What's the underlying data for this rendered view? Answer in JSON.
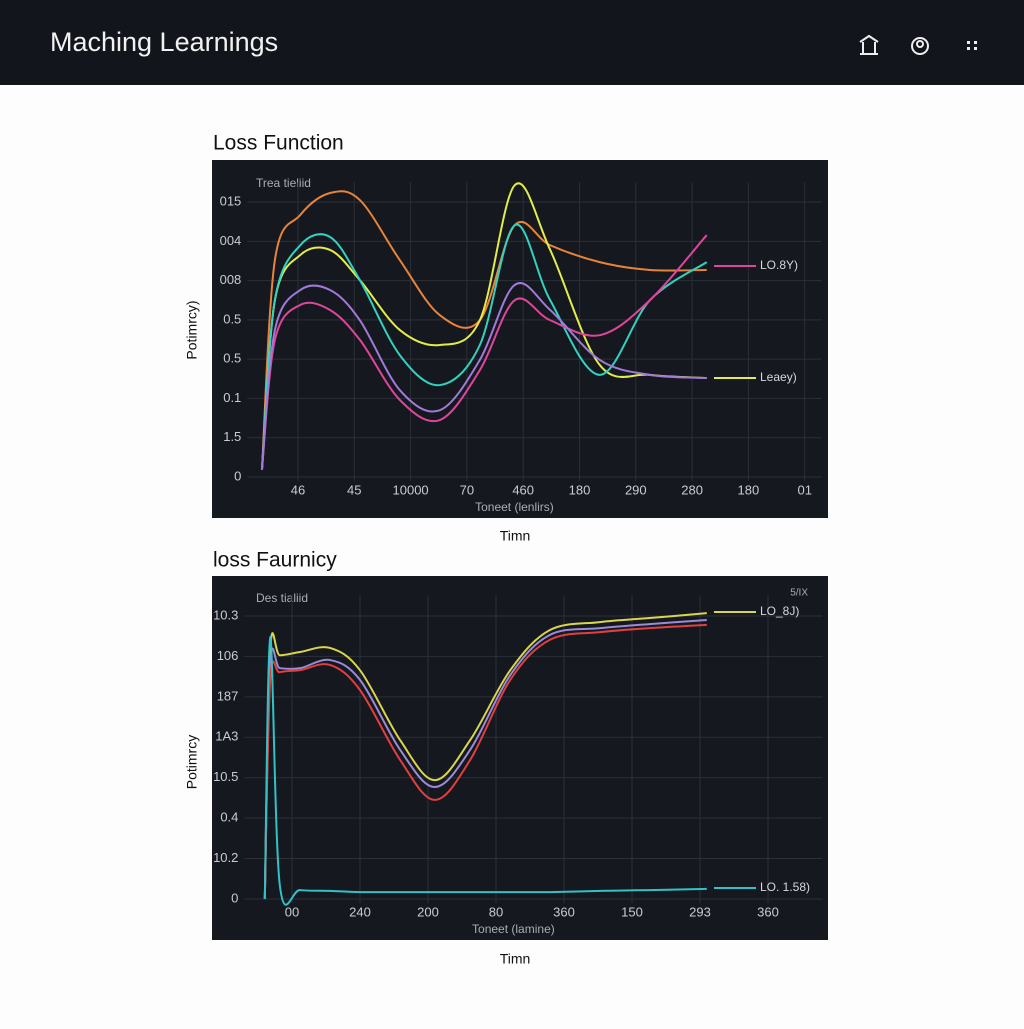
{
  "header": {
    "title": "Maching Learnings"
  },
  "chart_data": [
    {
      "type": "line",
      "title": "Loss Function",
      "subtitle": "Trea tieliid",
      "x_label": "Toneet (lenlirs)",
      "y_label": "Potimrcy)",
      "caption": "Timn",
      "grid": true,
      "xlim": [
        -0.9,
        9.3
      ],
      "ylim": [
        -0.1,
        7.5
      ],
      "xticks": [
        {
          "value": 0,
          "label": "46"
        },
        {
          "value": 1,
          "label": "45"
        },
        {
          "value": 2,
          "label": "10000"
        },
        {
          "value": 3,
          "label": "70"
        },
        {
          "value": 4,
          "label": "460"
        },
        {
          "value": 5,
          "label": "180"
        },
        {
          "value": 6,
          "label": "290"
        },
        {
          "value": 7,
          "label": "280"
        },
        {
          "value": 8,
          "label": "180"
        },
        {
          "value": 9,
          "label": "01"
        }
      ],
      "yticks": [
        {
          "value": 7,
          "label": "015"
        },
        {
          "value": 6,
          "label": "004"
        },
        {
          "value": 5,
          "label": "008"
        },
        {
          "value": 4,
          "label": "0.5"
        },
        {
          "value": 3,
          "label": "0.5"
        },
        {
          "value": 2,
          "label": "0.1"
        },
        {
          "value": 1,
          "label": "1.5"
        },
        0
      ],
      "x": [
        -0.64,
        -0.41,
        0.04,
        0.57,
        1.1,
        1.81,
        2.52,
        3.23,
        3.85,
        4.48,
        5.36,
        6.25,
        7.26
      ],
      "series": [
        {
          "color": "#e8843a",
          "values": [
            0.18,
            5.52,
            6.67,
            7.23,
            7.05,
            5.52,
            4.12,
            3.99,
            6.41,
            5.9,
            5.47,
            5.27,
            5.27
          ]
        },
        {
          "name": "Leaey)",
          "color": "#e4ec4a",
          "values": [
            0.18,
            4.5,
            5.65,
            5.78,
            5.01,
            3.74,
            3.36,
            3.99,
            7.43,
            5.78,
            2.85,
            2.6,
            2.52
          ]
        },
        {
          "color": "#33d1c0",
          "values": [
            0.18,
            4.5,
            5.9,
            6.11,
            5.01,
            3.1,
            2.34,
            3.36,
            6.41,
            4.5,
            2.6,
            4.5,
            5.47
          ]
        },
        {
          "name": "LO.8Y)",
          "color": "#e0459c",
          "values": [
            0.18,
            3.49,
            4.38,
            4.25,
            3.49,
            1.96,
            1.45,
            2.72,
            4.5,
            3.99,
            3.61,
            4.5,
            6.16
          ]
        },
        {
          "color": "#a07ad8",
          "values": [
            0.18,
            3.74,
            4.76,
            4.76,
            3.99,
            2.21,
            1.7,
            2.98,
            4.89,
            4.25,
            2.98,
            2.6,
            2.52
          ]
        }
      ]
    },
    {
      "type": "line",
      "title": "loss Faurnicy",
      "subtitle": "Des tialiid",
      "note": "5/IX",
      "x_label": "Toneet (lamine)",
      "y_label": "Potimrcy",
      "caption": "Timn",
      "grid": true,
      "xlim": [
        -0.7,
        7.8
      ],
      "ylim": [
        -0.1,
        7.5
      ],
      "xticks": [
        {
          "value": 0,
          "label": "00"
        },
        {
          "value": 1,
          "label": "240"
        },
        {
          "value": 2,
          "label": "200"
        },
        {
          "value": 3,
          "label": "80"
        },
        {
          "value": 4,
          "label": "360"
        },
        {
          "value": 5,
          "label": "150"
        },
        {
          "value": 6,
          "label": "293"
        },
        {
          "value": 7,
          "label": "360"
        }
      ],
      "yticks": [
        {
          "value": 7,
          "label": "10.3"
        },
        {
          "value": 6,
          "label": "106"
        },
        {
          "value": 5,
          "label": "187"
        },
        {
          "value": 4,
          "label": "1A3"
        },
        {
          "value": 3,
          "label": "10.5"
        },
        {
          "value": 2,
          "label": "0.4"
        },
        {
          "value": 1,
          "label": "10.2"
        },
        0
      ],
      "x": [
        -0.4,
        -0.32,
        -0.18,
        0.12,
        0.56,
        1.0,
        1.59,
        2.1,
        2.62,
        3.21,
        3.79,
        4.53,
        5.26,
        6.1
      ],
      "series": [
        {
          "name": "LO_8J)",
          "color": "#d8d64a",
          "values": [
            0,
            6.16,
            6.03,
            6.11,
            6.21,
            5.66,
            3.93,
            2.94,
            3.93,
            5.66,
            6.65,
            6.85,
            6.95,
            7.07
          ]
        },
        {
          "color": "#9a8ad8",
          "values": [
            0,
            5.79,
            5.71,
            5.71,
            5.91,
            5.42,
            3.69,
            2.77,
            3.69,
            5.54,
            6.53,
            6.7,
            6.8,
            6.9
          ]
        },
        {
          "color": "#e0403e",
          "values": [
            0,
            5.42,
            5.61,
            5.66,
            5.79,
            5.17,
            3.44,
            2.45,
            3.44,
            5.42,
            6.41,
            6.6,
            6.7,
            6.78
          ]
        },
        {
          "name": "LO. 1.58)",
          "color": "#2fc2c8",
          "values": [
            0,
            6.48,
            0.35,
            0.22,
            0.2,
            0.17,
            0.17,
            0.17,
            0.17,
            0.17,
            0.17,
            0.2,
            0.22,
            0.25
          ]
        }
      ]
    }
  ]
}
